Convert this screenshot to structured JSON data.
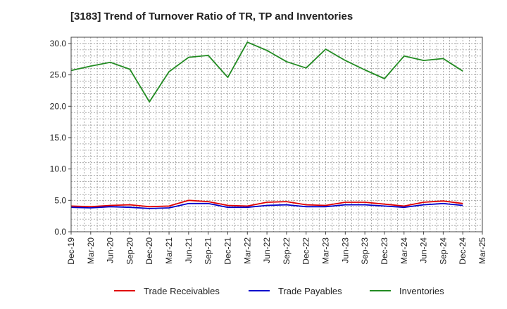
{
  "title": "[3183]  Trend of Turnover Ratio of TR, TP and Inventories",
  "chart_data": {
    "type": "line",
    "title": "[3183]  Trend of Turnover Ratio of TR, TP and Inventories",
    "xlabel": "",
    "ylabel": "",
    "ylim": [
      0,
      31
    ],
    "yticks": [
      "0.0",
      "5.0",
      "10.0",
      "15.0",
      "20.0",
      "25.0",
      "30.0"
    ],
    "ytick_values": [
      0,
      5,
      10,
      15,
      20,
      25,
      30
    ],
    "grid": true,
    "legend_position": "bottom",
    "categories": [
      "Dec-19",
      "Mar-20",
      "Jun-20",
      "Sep-20",
      "Dec-20",
      "Mar-21",
      "Jun-21",
      "Sep-21",
      "Dec-21",
      "Mar-22",
      "Jun-22",
      "Sep-22",
      "Dec-22",
      "Mar-23",
      "Jun-23",
      "Sep-23",
      "Dec-23",
      "Mar-24",
      "Jun-24",
      "Sep-24",
      "Dec-24",
      "Mar-25"
    ],
    "series": [
      {
        "name": "Trade Receivables",
        "color": "#e00000",
        "values": [
          4.1,
          4.0,
          4.2,
          4.3,
          4.0,
          4.1,
          5.0,
          4.8,
          4.2,
          4.1,
          4.7,
          4.8,
          4.3,
          4.2,
          4.7,
          4.7,
          4.4,
          4.1,
          4.7,
          4.9,
          4.5,
          null
        ]
      },
      {
        "name": "Trade Payables",
        "color": "#0000cc",
        "values": [
          3.9,
          3.8,
          4.0,
          3.9,
          3.7,
          3.8,
          4.5,
          4.5,
          3.9,
          3.9,
          4.2,
          4.3,
          4.0,
          4.0,
          4.3,
          4.3,
          4.1,
          3.9,
          4.3,
          4.5,
          4.2,
          null
        ]
      },
      {
        "name": "Inventories",
        "color": "#228b22",
        "values": [
          25.7,
          26.4,
          27.0,
          25.9,
          20.7,
          25.5,
          27.8,
          28.1,
          24.6,
          30.2,
          28.9,
          27.1,
          26.1,
          29.1,
          27.3,
          25.8,
          24.4,
          28.0,
          27.3,
          27.6,
          25.6,
          null
        ]
      }
    ]
  }
}
